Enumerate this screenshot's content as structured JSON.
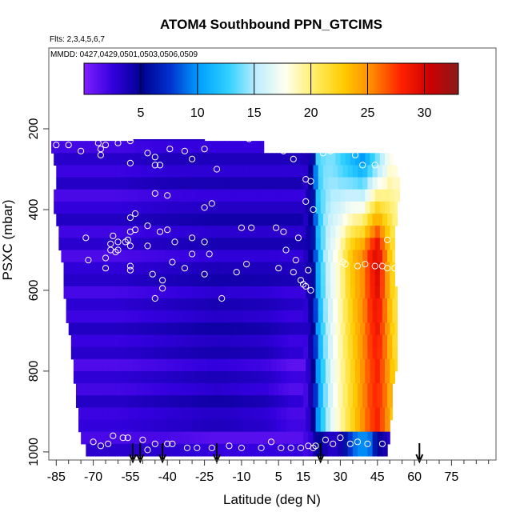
{
  "chart_data": {
    "type": "heatmap",
    "title": "ATOM4 Southbound PPN_GTCIMS",
    "flights_note": "Flts: 2,3,4,5,6,7",
    "dates_note": "MMDD: 0427,0429,0501,0503,0506,0509",
    "xlabel": "Latitude (deg N)",
    "ylabel": "PSXC (mbar)",
    "xlim": [
      -88,
      93
    ],
    "ylim": [
      1020,
      0
    ],
    "x_ticks": [
      -85,
      -70,
      -55,
      -40,
      -25,
      -10,
      5,
      15,
      30,
      45,
      60,
      75
    ],
    "x_tick_labels": [
      "-85",
      "-70",
      "-55",
      "-40",
      "-25",
      "-10",
      "5",
      "15",
      "30",
      "45",
      "60",
      "75"
    ],
    "y_ticks": [
      200,
      400,
      600,
      800,
      1000
    ],
    "y_tick_labels": [
      "200",
      "400",
      "600",
      "800",
      "1000"
    ],
    "colorbar": {
      "range": [
        0,
        33
      ],
      "ticks": [
        5,
        10,
        15,
        20,
        25,
        30
      ],
      "tick_labels": [
        "5",
        "10",
        "15",
        "20",
        "25",
        "30"
      ],
      "colors": [
        "#7f1fff",
        "#3300dd",
        "#00008f",
        "#0032d0",
        "#00a0ff",
        "#2fd0ff",
        "#bfefff",
        "#fffff0",
        "#ffee66",
        "#ffcc00",
        "#ff8800",
        "#ff2200",
        "#cc0000",
        "#8b1a1a"
      ]
    },
    "band_edges": [
      200,
      230,
      260,
      290,
      320,
      350,
      380,
      410,
      440,
      470,
      500,
      530,
      560,
      590,
      620,
      650,
      680,
      710,
      740,
      770,
      800,
      830,
      860,
      890,
      920,
      950,
      980,
      1010
    ],
    "band_lat_range": [
      [
        -54,
        -25
      ],
      [
        -87,
        -1
      ],
      [
        -86,
        51
      ],
      [
        -85,
        53
      ],
      [
        -85,
        54
      ],
      [
        -86,
        54
      ],
      [
        -86,
        53
      ],
      [
        -85,
        53
      ],
      [
        -84,
        52
      ],
      [
        -84,
        52
      ],
      [
        -83,
        52
      ],
      [
        -82,
        52
      ],
      [
        -82,
        52
      ],
      [
        -82,
        53
      ],
      [
        -81,
        53
      ],
      [
        -81,
        53
      ],
      [
        -80,
        53
      ],
      [
        -79,
        53
      ],
      [
        -79,
        53
      ],
      [
        -78,
        53
      ],
      [
        -78,
        52
      ],
      [
        -77,
        51
      ],
      [
        -77,
        51
      ],
      [
        -76,
        51
      ],
      [
        -76,
        50
      ],
      [
        -75,
        50
      ],
      [
        -73,
        49
      ]
    ],
    "profile_lat": [
      -85,
      -60,
      -40,
      -20,
      0,
      10,
      16,
      19,
      21,
      24,
      27,
      30,
      33,
      36,
      39,
      42,
      45,
      48,
      50,
      52
    ],
    "profile_upper": [
      2.5,
      2.5,
      3.0,
      3.0,
      3.0,
      3.0,
      3.0,
      6.0,
      13,
      14,
      14,
      13,
      12,
      11,
      10,
      12,
      14,
      16,
      18,
      18
    ],
    "profile_mid": [
      2.5,
      2.5,
      3.0,
      3.5,
      3.5,
      3.5,
      3.5,
      6.0,
      11,
      15,
      17,
      19,
      22,
      24,
      25,
      28,
      30,
      26,
      23,
      21
    ],
    "profile_lower": [
      2.5,
      2.5,
      3.0,
      3.5,
      3.0,
      2.0,
      2.0,
      5.0,
      10,
      14,
      17,
      19,
      21,
      23,
      25,
      27,
      28,
      26,
      24,
      22
    ],
    "profile_surface": [
      2.5,
      2.5,
      2.5,
      2.0,
      2.0,
      2.0,
      2.0,
      3.0,
      6.0,
      4.0,
      3.0,
      4.0,
      7.0,
      9.0,
      10,
      9.0,
      5.0,
      4.0,
      3.0,
      3.0
    ],
    "profile_noise": [
      0.3,
      -0.5,
      0.6,
      -0.2,
      0.8,
      -0.7,
      0.1,
      0.9,
      -0.4,
      0.5,
      -0.8,
      0.2,
      0.7,
      -0.6,
      0.4,
      -0.3,
      0.9,
      -0.1,
      0.6,
      -0.9,
      0.3,
      -0.5,
      0.8,
      -0.2,
      0.1,
      -0.7,
      0.5
    ],
    "observations": [
      [
        -85,
        240
      ],
      [
        -80,
        240
      ],
      [
        -75,
        255
      ],
      [
        -68,
        235
      ],
      [
        -67,
        250
      ],
      [
        -67,
        265
      ],
      [
        -65,
        240
      ],
      [
        -60,
        235
      ],
      [
        -55,
        230
      ],
      [
        -50,
        205
      ],
      [
        -45,
        210
      ],
      [
        -44,
        200
      ],
      [
        -48,
        260
      ],
      [
        -45,
        270
      ],
      [
        -55,
        285
      ],
      [
        -45,
        290
      ],
      [
        -43,
        290
      ],
      [
        -39,
        250
      ],
      [
        -33,
        255
      ],
      [
        -30,
        275
      ],
      [
        -25,
        250
      ],
      [
        -20,
        300
      ],
      [
        -13,
        210
      ],
      [
        -12,
        210
      ],
      [
        -7,
        225
      ],
      [
        7,
        255
      ],
      [
        11,
        275
      ],
      [
        18,
        330
      ],
      [
        16,
        325
      ],
      [
        16,
        380
      ],
      [
        23,
        260
      ],
      [
        26,
        255
      ],
      [
        36,
        265
      ],
      [
        39,
        290
      ],
      [
        44,
        290
      ],
      [
        54,
        290
      ],
      [
        55,
        290
      ],
      [
        -45,
        360
      ],
      [
        -40,
        365
      ],
      [
        -25,
        395
      ],
      [
        -22,
        385
      ],
      [
        19,
        400
      ],
      [
        -55,
        420
      ],
      [
        -53,
        410
      ],
      [
        -48,
        440
      ],
      [
        -53,
        450
      ],
      [
        -55,
        455
      ],
      [
        -56,
        475
      ],
      [
        -60,
        480
      ],
      [
        -57,
        480
      ],
      [
        -62,
        465
      ],
      [
        -63,
        485
      ],
      [
        -63,
        500
      ],
      [
        -61,
        505
      ],
      [
        -65,
        520
      ],
      [
        -55,
        490
      ],
      [
        -48,
        490
      ],
      [
        -40,
        450
      ],
      [
        -43,
        455
      ],
      [
        -37,
        480
      ],
      [
        -30,
        470
      ],
      [
        -25,
        480
      ],
      [
        -23,
        510
      ],
      [
        -10,
        445
      ],
      [
        -6,
        445
      ],
      [
        4,
        445
      ],
      [
        7,
        455
      ],
      [
        13,
        470
      ],
      [
        8,
        500
      ],
      [
        12,
        525
      ],
      [
        5,
        545
      ],
      [
        11,
        555
      ],
      [
        14,
        575
      ],
      [
        17,
        550
      ],
      [
        15,
        585
      ],
      [
        16,
        590
      ],
      [
        18,
        600
      ],
      [
        -73,
        470
      ],
      [
        -72,
        525
      ],
      [
        -65,
        545
      ],
      [
        -60,
        500
      ],
      [
        -55,
        550
      ],
      [
        -55,
        540
      ],
      [
        -46,
        560
      ],
      [
        -42,
        575
      ],
      [
        -42,
        595
      ],
      [
        -38,
        530
      ],
      [
        -33,
        545
      ],
      [
        -30,
        510
      ],
      [
        -25,
        560
      ],
      [
        -18,
        620
      ],
      [
        -12,
        555
      ],
      [
        -8,
        535
      ],
      [
        -45,
        620
      ],
      [
        31,
        530
      ],
      [
        32,
        535
      ],
      [
        37,
        540
      ],
      [
        40,
        535
      ],
      [
        44,
        540
      ],
      [
        47,
        540
      ],
      [
        49,
        545
      ],
      [
        52,
        545
      ],
      [
        49,
        475
      ],
      [
        -75,
        990
      ],
      [
        -70,
        975
      ],
      [
        -67,
        985
      ],
      [
        -64,
        980
      ],
      [
        -62,
        960
      ],
      [
        -58,
        965
      ],
      [
        -56,
        965
      ],
      [
        -50,
        970
      ],
      [
        -48,
        995
      ],
      [
        -45,
        980
      ],
      [
        -40,
        980
      ],
      [
        -38,
        980
      ],
      [
        -32,
        990
      ],
      [
        -28,
        990
      ],
      [
        -22,
        990
      ],
      [
        -15,
        985
      ],
      [
        -10,
        990
      ],
      [
        -2,
        990
      ],
      [
        2,
        975
      ],
      [
        6,
        990
      ],
      [
        10,
        990
      ],
      [
        14,
        990
      ],
      [
        17,
        985
      ],
      [
        19,
        990
      ],
      [
        20,
        985
      ],
      [
        24,
        970
      ],
      [
        27,
        980
      ],
      [
        30,
        965
      ],
      [
        34,
        980
      ],
      [
        37,
        975
      ],
      [
        41,
        980
      ],
      [
        47,
        980
      ],
      [
        53,
        975
      ],
      [
        58,
        975
      ]
    ],
    "flight_markers_lat": [
      -54,
      -51,
      -42,
      -20,
      22,
      62
    ]
  }
}
